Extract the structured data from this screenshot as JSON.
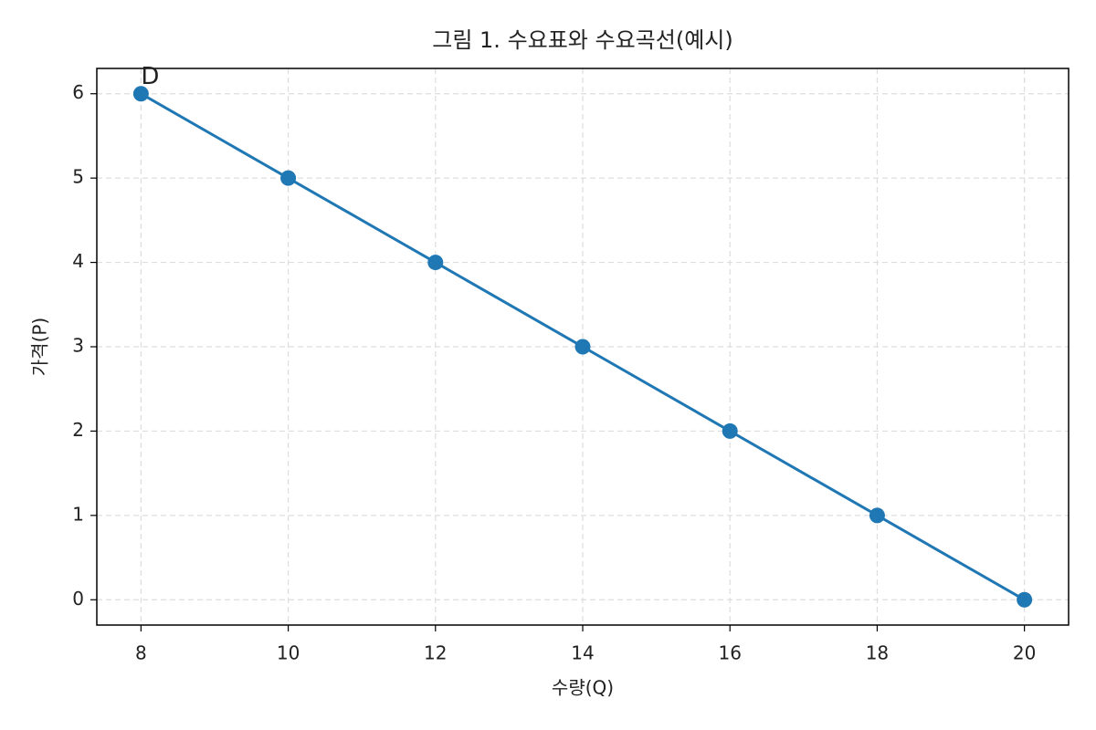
{
  "chart_data": {
    "type": "line",
    "title": "그림 1. 수요표와 수요곡선(예시)",
    "x_label": "수량(Q)",
    "y_label": "가격(P)",
    "x": [
      8,
      10,
      12,
      14,
      16,
      18,
      20
    ],
    "values": [
      6,
      5,
      4,
      3,
      2,
      1,
      0
    ],
    "color": "#1f77b4",
    "markers": true,
    "xlim": [
      7.4,
      20.6
    ],
    "ylim": [
      -0.3,
      6.3
    ],
    "xticks": [
      8,
      10,
      12,
      14,
      16,
      18,
      20
    ],
    "yticks": [
      0,
      1,
      2,
      3,
      4,
      5,
      6
    ],
    "grid": true,
    "annotations": [
      {
        "text": "D",
        "x": 8,
        "y": 6
      }
    ]
  }
}
